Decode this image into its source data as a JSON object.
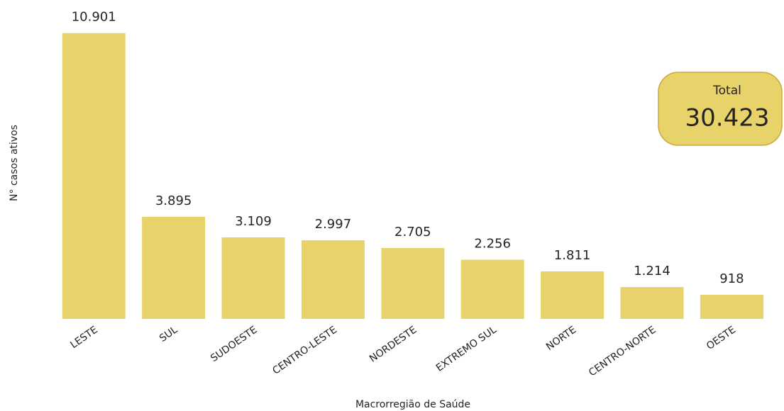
{
  "chart_data": {
    "type": "bar",
    "x_label": "Macrorregião de Saúde",
    "y_label": "N° casos ativos",
    "categories": [
      "LESTE",
      "SUL",
      "SUDOESTE",
      "CENTRO-LESTE",
      "NORDESTE",
      "EXTREMO SUL",
      "NORTE",
      "CENTRO-NORTE",
      "OESTE"
    ],
    "values": [
      10901,
      3895,
      3109,
      2997,
      2705,
      2256,
      1811,
      1214,
      918
    ],
    "value_labels": [
      "10.901",
      "3.895",
      "3.109",
      "2.997",
      "2.705",
      "2.256",
      "1.811",
      "1.214",
      "918"
    ],
    "color": "#e8d26a",
    "ylim": [
      0,
      11000
    ],
    "total": {
      "label": "Total",
      "value": 30423,
      "value_label": "30.423"
    }
  }
}
